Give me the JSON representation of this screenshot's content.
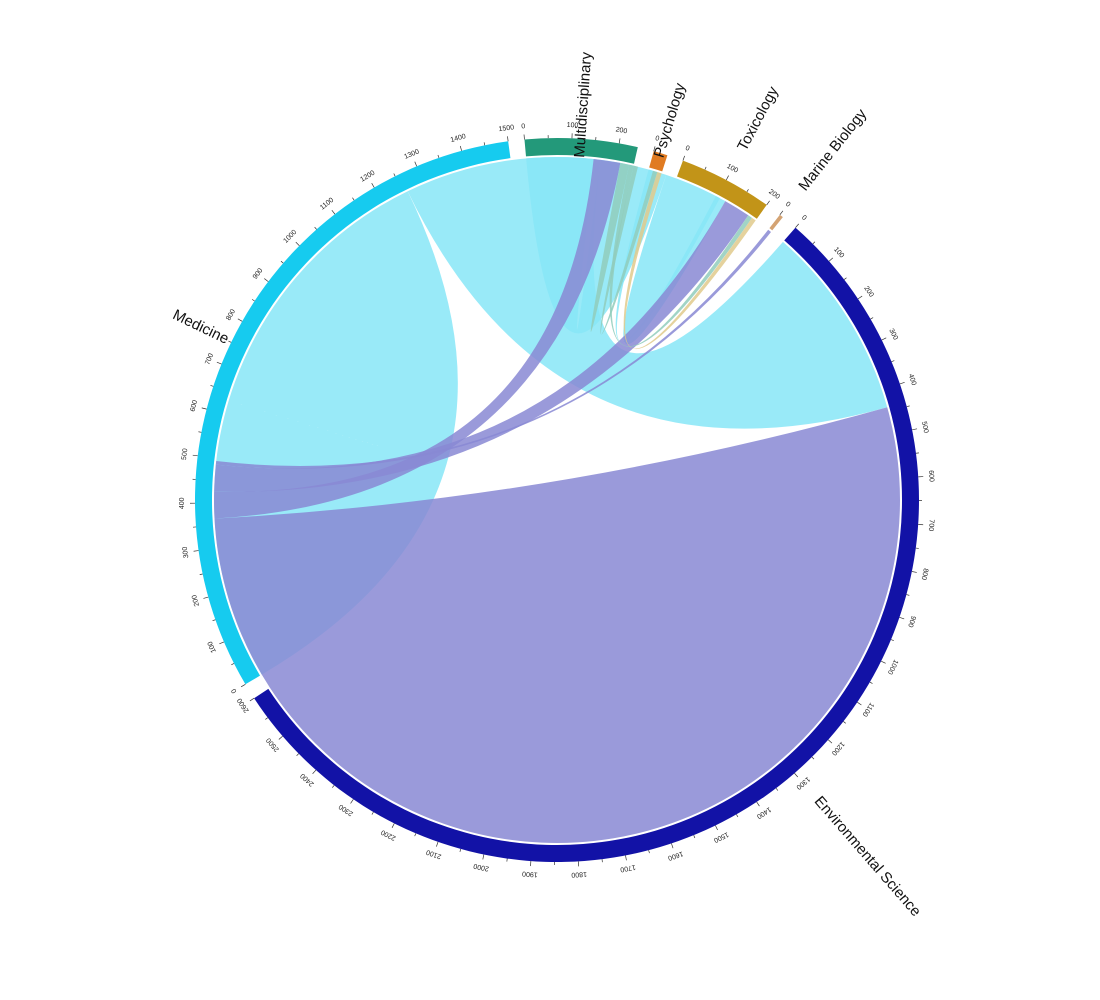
{
  "chart_data": {
    "type": "chord",
    "title": "",
    "sectors": [
      {
        "name": "Medicine",
        "total": 1500,
        "tick_step": 100,
        "color": "#16CBEF",
        "link_color": "#87E6F7"
      },
      {
        "name": "Multidisciplinary",
        "total": 240,
        "tick_step": 100,
        "color": "#23997A",
        "link_color": "#91CCBC"
      },
      {
        "name": "Psychology",
        "total": 30,
        "tick_step": 100,
        "color": "#E07B22",
        "link_color": "#F0BD90"
      },
      {
        "name": "Toxicology",
        "total": 200,
        "tick_step": 100,
        "color": "#C29418",
        "link_color": "#E0CA8C"
      },
      {
        "name": "Marine Biology",
        "total": 8,
        "tick_step": 100,
        "color": "#D4A373",
        "link_color": "#E9D1B9"
      },
      {
        "name": "Environmental Science",
        "total": 2600,
        "tick_step": 100,
        "color": "#1212A6",
        "link_color": "#8888D3"
      }
    ],
    "links": [
      {
        "source": "Medicine",
        "target": "Medicine",
        "value": 630
      },
      {
        "source": "Medicine",
        "target": "Environmental Science",
        "value": 440
      },
      {
        "source": "Medicine",
        "target": "Multidisciplinary",
        "value": 150
      },
      {
        "source": "Medicine",
        "target": "Toxicology",
        "value": 120
      },
      {
        "source": "Medicine",
        "target": "Psychology",
        "value": 10
      },
      {
        "source": "Environmental Science",
        "target": "Environmental Science",
        "value": 1280
      },
      {
        "source": "Environmental Science",
        "target": "Multidisciplinary",
        "value": 60
      },
      {
        "source": "Environmental Science",
        "target": "Toxicology",
        "value": 60
      },
      {
        "source": "Multidisciplinary",
        "target": "Multidisciplinary",
        "value": 10
      },
      {
        "source": "Multidisciplinary",
        "target": "Toxicology",
        "value": 10
      },
      {
        "source": "Multidisciplinary",
        "target": "Psychology",
        "value": 10
      },
      {
        "source": "Toxicology",
        "target": "Psychology",
        "value": 10
      },
      {
        "source": "Environmental Science",
        "target": "Marine Biology",
        "value": 8
      },
      {
        "source": "Marine Biology",
        "target": "Environmental Science",
        "value": 0
      }
    ]
  }
}
